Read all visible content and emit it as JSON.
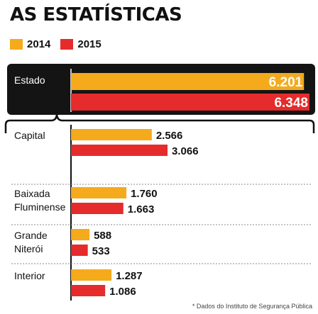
{
  "title": "AS ESTATÍSTICAS",
  "footnote": "* Dados do Instituto de Segurança Pública",
  "colors": {
    "y2014": "#f5aa1c",
    "y2015": "#e52b2b",
    "panel": "#141414"
  },
  "chart_data": {
    "type": "bar",
    "orientation": "horizontal",
    "legend_position": "top-left",
    "grid": false,
    "categories": [
      "Estado",
      "Capital",
      "Baixada Fluminense",
      "Grande Niterói",
      "Interior"
    ],
    "category_lines": [
      [
        "Estado"
      ],
      [
        "Capital"
      ],
      [
        "Baixada",
        "Fluminense"
      ],
      [
        "Grande",
        "Niterói"
      ],
      [
        "Interior"
      ]
    ],
    "series": [
      {
        "name": "2014",
        "values": [
          6201,
          2566,
          1760,
          588,
          1287
        ],
        "labels": [
          "6.201",
          "2.566",
          "1.760",
          "588",
          "1.287"
        ]
      },
      {
        "name": "2015",
        "values": [
          6348,
          3066,
          1663,
          533,
          1086
        ],
        "labels": [
          "6.348",
          "3.066",
          "1.663",
          "533",
          "1.086"
        ]
      }
    ]
  }
}
